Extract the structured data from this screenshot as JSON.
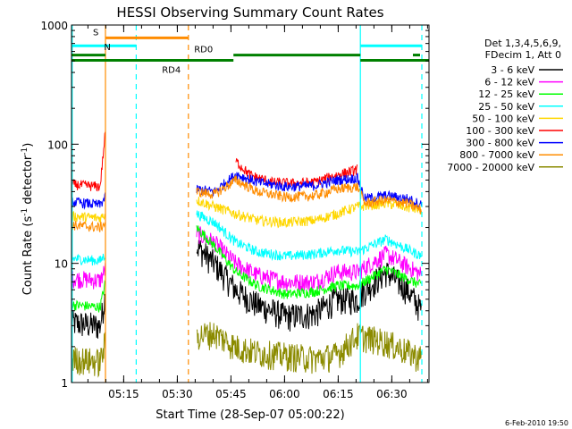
{
  "chart_data": {
    "type": "line",
    "title": "HESSI Observing Summary Count Rates",
    "xlabel": "Start Time (28-Sep-07 05:00:22)",
    "ylabel": "Count Rate (s⁻¹ detector⁻¹)",
    "ylabel_main": "Count Rate (s",
    "ylabel_sup1": "-1",
    "ylabel_mid": " detector",
    "ylabel_sup2": "-1",
    "ylabel_end": ")",
    "yscale": "log",
    "ylim": [
      1,
      1000
    ],
    "xlim": [
      0,
      100
    ],
    "x_units": "minutes after 05:00:22",
    "x_ticks": [
      {
        "label": "05:15",
        "value": 14.6
      },
      {
        "label": "05:30",
        "value": 29.6
      },
      {
        "label": "05:45",
        "value": 44.6
      },
      {
        "label": "06:00",
        "value": 59.6
      },
      {
        "label": "06:15",
        "value": 74.6
      },
      {
        "label": "06:30",
        "value": 89.6
      }
    ],
    "y_ticks": [
      {
        "label": "1",
        "value": 1
      },
      {
        "label": "10",
        "value": 10
      },
      {
        "label": "100",
        "value": 100
      },
      {
        "label": "1000",
        "value": 1000
      }
    ],
    "legend_header": [
      "Det 1,3,4,5,6,9,",
      "FDecim 1, Att 0"
    ],
    "series": [
      {
        "name": "3 - 6 keV",
        "color": "#000000",
        "values": [
          [
            0,
            3.2
          ],
          [
            8,
            3.0
          ],
          [
            9.5,
            5.5
          ]
        ],
        "seg2": [
          [
            35,
            14
          ],
          [
            40,
            10
          ],
          [
            46,
            6
          ],
          [
            52,
            4.5
          ],
          [
            60,
            3.6
          ],
          [
            68,
            3.8
          ],
          [
            74,
            5
          ],
          [
            80,
            5
          ],
          [
            82,
            6
          ],
          [
            88,
            8.5
          ],
          [
            94,
            6
          ],
          [
            98,
            4
          ]
        ]
      },
      {
        "name": "6 - 12 keV",
        "color": "#ff00ff",
        "values": [
          [
            0,
            7.5
          ],
          [
            8,
            7.2
          ],
          [
            9.5,
            9
          ]
        ],
        "seg2": [
          [
            35,
            18
          ],
          [
            40,
            15
          ],
          [
            46,
            10
          ],
          [
            52,
            8
          ],
          [
            60,
            7
          ],
          [
            68,
            7
          ],
          [
            74,
            8.5
          ],
          [
            80,
            8.5
          ],
          [
            88,
            12
          ],
          [
            98,
            8
          ]
        ]
      },
      {
        "name": "12 - 25 keV",
        "color": "#00ff00",
        "values": [
          [
            0,
            4.5
          ],
          [
            8,
            4.3
          ],
          [
            9.5,
            7
          ]
        ],
        "seg2": [
          [
            35,
            20
          ],
          [
            40,
            14
          ],
          [
            46,
            8.5
          ],
          [
            52,
            6.5
          ],
          [
            60,
            5.5
          ],
          [
            68,
            5.8
          ],
          [
            74,
            6.5
          ],
          [
            80,
            6.5
          ],
          [
            88,
            9
          ],
          [
            98,
            6.5
          ]
        ]
      },
      {
        "name": "25 - 50 keV",
        "color": "#00ffff",
        "values": [
          [
            0,
            11
          ],
          [
            8,
            10.5
          ],
          [
            9.5,
            12
          ]
        ],
        "seg2": [
          [
            35,
            26
          ],
          [
            40,
            22
          ],
          [
            46,
            15
          ],
          [
            52,
            12.5
          ],
          [
            60,
            11.5
          ],
          [
            68,
            12
          ],
          [
            74,
            13
          ],
          [
            80,
            12.5
          ],
          [
            88,
            16
          ],
          [
            98,
            11.5
          ]
        ]
      },
      {
        "name": "50 - 100 keV",
        "color": "#ffd700",
        "values": [
          [
            0,
            25
          ],
          [
            8,
            24
          ],
          [
            9.5,
            26
          ]
        ],
        "seg2": [
          [
            35,
            34
          ],
          [
            40,
            30
          ],
          [
            46,
            26
          ],
          [
            52,
            23
          ],
          [
            60,
            22
          ],
          [
            68,
            23
          ],
          [
            74,
            26
          ],
          [
            80,
            30
          ],
          [
            88,
            32
          ],
          [
            98,
            28
          ]
        ]
      },
      {
        "name": "100 - 300 keV",
        "color": "#ff0000",
        "values": [
          [
            0,
            46
          ],
          [
            8,
            44
          ],
          [
            9.5,
            130
          ]
        ],
        "seg2": [
          [
            46,
            72
          ],
          [
            50,
            55
          ],
          [
            56,
            48
          ],
          [
            62,
            47
          ],
          [
            68,
            48
          ],
          [
            74,
            55
          ],
          [
            79,
            60
          ],
          [
            80,
            62
          ]
        ]
      },
      {
        "name": "300 - 800 keV",
        "color": "#0000ff",
        "values": [
          [
            0,
            33
          ],
          [
            8,
            31
          ],
          [
            9.5,
            36
          ]
        ],
        "seg2": [
          [
            35,
            42
          ],
          [
            40,
            40
          ],
          [
            46,
            56
          ],
          [
            52,
            48
          ],
          [
            60,
            44
          ],
          [
            68,
            45
          ],
          [
            74,
            50
          ],
          [
            80,
            52
          ],
          [
            82,
            35
          ],
          [
            88,
            37
          ],
          [
            94,
            35
          ],
          [
            98,
            31
          ]
        ]
      },
      {
        "name": "800 - 7000 keV",
        "color": "#ff8c00",
        "values": [
          [
            0,
            21
          ],
          [
            8,
            20
          ],
          [
            9.5,
            22
          ]
        ],
        "seg2": [
          [
            35,
            40
          ],
          [
            40,
            38
          ],
          [
            46,
            50
          ],
          [
            52,
            40
          ],
          [
            60,
            36
          ],
          [
            68,
            37
          ],
          [
            74,
            42
          ],
          [
            80,
            44
          ],
          [
            82,
            32
          ],
          [
            88,
            34
          ],
          [
            94,
            32
          ],
          [
            98,
            28
          ]
        ]
      },
      {
        "name": "7000 - 20000 keV",
        "color": "#8b8b00",
        "values": [
          [
            0,
            1.6
          ],
          [
            8,
            1.5
          ],
          [
            9.5,
            2.2
          ]
        ],
        "seg2": [
          [
            35,
            2.5
          ],
          [
            40,
            2.6
          ],
          [
            46,
            2.0
          ],
          [
            52,
            1.8
          ],
          [
            60,
            1.7
          ],
          [
            68,
            1.6
          ],
          [
            74,
            1.7
          ],
          [
            80,
            2.5
          ],
          [
            88,
            2.2
          ],
          [
            98,
            1.6
          ]
        ]
      }
    ],
    "annotations": {
      "S": {
        "label": "S",
        "color": "#ff8c00",
        "x_start": 9.5,
        "x_end": 32.7,
        "y": 780
      },
      "N": {
        "label": "N",
        "color": "#00ffff",
        "x_start": 0,
        "x_end": 18.1,
        "y": 670
      },
      "RD0": {
        "label": "RD0",
        "color": "#008000",
        "y": 560
      },
      "RD4": {
        "label": "RD4",
        "color": "#008000",
        "y": 505
      }
    },
    "green_bar_segments": [
      [
        0,
        45.3
      ],
      [
        45.3,
        80.8
      ],
      [
        80.8,
        100
      ]
    ],
    "vlines": [
      {
        "x": 9.5,
        "color": "#ff8c00",
        "style": "solid"
      },
      {
        "x": 18.1,
        "color": "#00ffff",
        "style": "dashed"
      },
      {
        "x": 32.7,
        "color": "#ff8c00",
        "style": "dashed"
      },
      {
        "x": 80.8,
        "color": "#00ffff",
        "style": "solid"
      },
      {
        "x": 98.0,
        "color": "#00ffff",
        "style": "dashed"
      },
      {
        "x": 0.2,
        "color": "#00ffff",
        "style": "solid"
      }
    ]
  },
  "footer_date": "6-Feb-2010 19:50"
}
